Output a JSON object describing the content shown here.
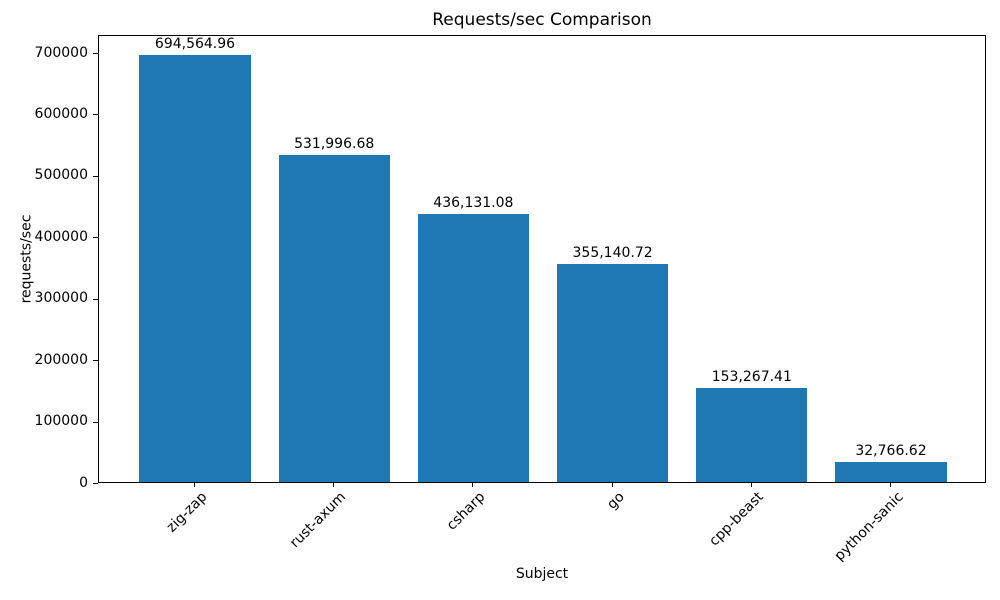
{
  "chart_data": {
    "type": "bar",
    "title": "Requests/sec Comparison",
    "xlabel": "Subject",
    "ylabel": "requests/sec",
    "categories": [
      "zig-zap",
      "rust-axum",
      "csharp",
      "go",
      "cpp-beast",
      "python-sanic"
    ],
    "values": [
      694564.96,
      531996.68,
      436131.08,
      355140.72,
      153267.41,
      32766.62
    ],
    "value_labels": [
      "694,564.96",
      "531,996.68",
      "436,131.08",
      "355,140.72",
      "153,267.41",
      "32,766.62"
    ],
    "y_ticks": [
      0,
      100000,
      200000,
      300000,
      400000,
      500000,
      600000,
      700000
    ],
    "y_tick_labels": [
      "0",
      "100000",
      "200000",
      "300000",
      "400000",
      "500000",
      "600000",
      "700000"
    ],
    "ylim": [
      0,
      729293
    ],
    "bar_color": "#1f77b4",
    "axis_color": "#000000",
    "grid": false,
    "x_tick_rotation": 45,
    "bar_relative_width": 0.8
  }
}
